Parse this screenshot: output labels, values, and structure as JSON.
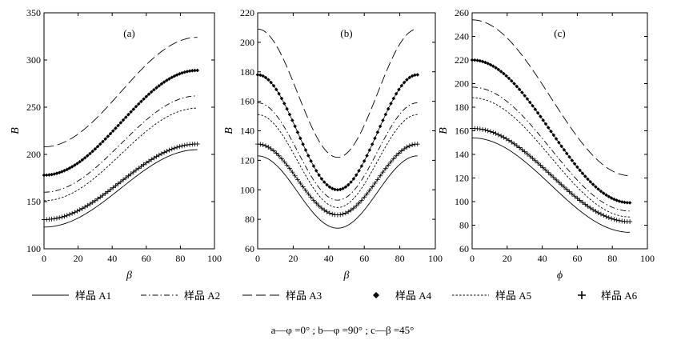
{
  "chart_data": [
    {
      "type": "line",
      "panel_label": "(a)",
      "xlabel": "β",
      "ylabel": "B",
      "xlim": [
        0,
        100
      ],
      "ylim": [
        100,
        350
      ],
      "xticks": [
        0,
        20,
        40,
        60,
        80,
        100
      ],
      "yticks": [
        100,
        150,
        200,
        250,
        300,
        350
      ],
      "x_range": [
        0,
        90
      ],
      "series": [
        {
          "key": "A1",
          "start": 123,
          "end": 205
        },
        {
          "key": "A2",
          "start": 160,
          "end": 262
        },
        {
          "key": "A3",
          "start": 208,
          "end": 324
        },
        {
          "key": "A4",
          "start": 178,
          "end": 289
        },
        {
          "key": "A5",
          "start": 151,
          "end": 249
        },
        {
          "key": "A6",
          "start": 131,
          "end": 211
        }
      ]
    },
    {
      "type": "line",
      "panel_label": "(b)",
      "xlabel": "β",
      "ylabel": "B",
      "xlim": [
        0,
        100
      ],
      "ylim": [
        60,
        220
      ],
      "xticks": [
        0,
        20,
        40,
        60,
        80,
        100
      ],
      "yticks": [
        60,
        80,
        100,
        120,
        140,
        160,
        180,
        200,
        220
      ],
      "x_range": [
        0,
        90
      ],
      "series": [
        {
          "key": "A1",
          "start": 123,
          "min": 74
        },
        {
          "key": "A2",
          "start": 159,
          "min": 93
        },
        {
          "key": "A3",
          "start": 209,
          "min": 122
        },
        {
          "key": "A4",
          "start": 178,
          "min": 100
        },
        {
          "key": "A5",
          "start": 151,
          "min": 88
        },
        {
          "key": "A6",
          "start": 131,
          "min": 83
        }
      ]
    },
    {
      "type": "line",
      "panel_label": "(c)",
      "xlabel": "ϕ",
      "ylabel": "B",
      "xlim": [
        0,
        100
      ],
      "ylim": [
        60,
        260
      ],
      "xticks": [
        0,
        20,
        40,
        60,
        80,
        100
      ],
      "yticks": [
        60,
        80,
        100,
        120,
        140,
        160,
        180,
        200,
        220,
        240,
        260
      ],
      "x_range": [
        0,
        90
      ],
      "series": [
        {
          "key": "A1",
          "start": 154,
          "end": 74
        },
        {
          "key": "A2",
          "start": 197,
          "end": 92
        },
        {
          "key": "A3",
          "start": 254,
          "end": 122
        },
        {
          "key": "A4",
          "start": 220,
          "end": 99
        },
        {
          "key": "A5",
          "start": 188,
          "end": 87
        },
        {
          "key": "A6",
          "start": 162,
          "end": 83
        }
      ]
    }
  ],
  "legend": {
    "placement": "bottom",
    "items": [
      {
        "key": "A1",
        "label": "样品 A1",
        "style": "solid"
      },
      {
        "key": "A2",
        "label": "样品 A2",
        "style": "dashdot"
      },
      {
        "key": "A3",
        "label": "样品 A3",
        "style": "longdash"
      },
      {
        "key": "A4",
        "label": "样品 A4",
        "style": "diamond-marker"
      },
      {
        "key": "A5",
        "label": "样品 A5",
        "style": "dotted"
      },
      {
        "key": "A6",
        "label": "样品 A6",
        "style": "plus-marker"
      }
    ]
  },
  "caption": "a—φ =0° ; b—φ =90° ; c—β =45°",
  "colors": {
    "ink": "#000000",
    "background": "#ffffff"
  }
}
